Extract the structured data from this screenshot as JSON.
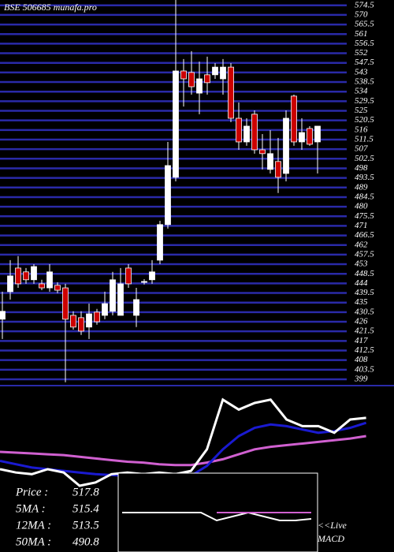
{
  "chart_data": {
    "type": "candlestick",
    "title": "BSE 506685 munafa.pro",
    "open": [
      427.2,
      440.1,
      451.2,
      449.4,
      445.7,
      443.8,
      441.9,
      443.1,
      441.9,
      429,
      427.9,
      423.5,
      430.5,
      429,
      430.9,
      429,
      451.2,
      429,
      444.5,
      445.7,
      454.9,
      471.6,
      493.8,
      543.7,
      543,
      533.3,
      541.9,
      541.9,
      540,
      545.5,
      521.5,
      510.4,
      523.4,
      506.7,
      497.5,
      501.2,
      495.6,
      531.9,
      510.4,
      516.7,
      510.4
    ],
    "high": [
      440.1,
      454.9,
      456.8,
      451.2,
      453,
      445.7,
      453,
      444.5,
      443.8,
      430.9,
      430.9,
      434.5,
      432,
      440.1,
      449.4,
      451.2,
      453,
      441.9,
      446,
      454.9,
      473.4,
      510.4,
      577,
      549.3,
      553,
      548.1,
      550.4,
      547.4,
      549.3,
      547.4,
      528.9,
      521.5,
      525.2,
      514.1,
      515.9,
      512.3,
      525.2,
      532.6,
      521.5,
      517.8,
      517.8
    ],
    "low": [
      417.9,
      436.4,
      441.9,
      443.8,
      443.8,
      440.8,
      440.1,
      439.4,
      397.6,
      422.3,
      419.8,
      417.9,
      424.6,
      427.2,
      429,
      429,
      441.9,
      423.5,
      443.5,
      443.8,
      453,
      469.7,
      491.9,
      527,
      532.6,
      523.4,
      532.6,
      540,
      532.6,
      519.7,
      506.7,
      508.6,
      504.9,
      497.5,
      495.6,
      486.4,
      491.9,
      508.6,
      506.7,
      508.6,
      495.6
    ],
    "close": [
      430.9,
      447.5,
      443.8,
      445.7,
      451.9,
      441.9,
      449.4,
      440.8,
      427.2,
      423.5,
      421.6,
      429.7,
      426,
      434.5,
      445.7,
      443.8,
      443.8,
      436.4,
      444.9,
      449.4,
      471.6,
      499.3,
      543.7,
      540,
      536.3,
      540,
      538.2,
      545.5,
      545.5,
      521.5,
      510.4,
      517.8,
      506.7,
      504.9,
      504.9,
      493.8,
      521.5,
      510.4,
      514.8,
      509.3,
      517.8
    ],
    "ylim": [
      396.4,
      577
    ],
    "yticks": [
      399,
      403.5,
      408,
      412.5,
      417,
      421.5,
      426,
      430.5,
      435,
      439.5,
      444,
      448.5,
      453,
      457.5,
      462,
      466.5,
      471,
      475.5,
      480,
      484.5,
      489,
      493.5,
      498,
      502.5,
      507,
      511.5,
      516,
      520.5,
      525,
      529.5,
      534,
      538.5,
      543,
      547.5,
      552,
      556.5,
      561,
      565.5,
      570,
      574.5
    ],
    "grid": true,
    "grid_color": "#2a2aa8",
    "up_color": "#ffffff",
    "down_color": "#cc0000"
  },
  "indicators": {
    "ylim": [
      0,
      100
    ],
    "series": [
      {
        "color": "#d060d0",
        "values": [
          60.5,
          60,
          59.5,
          59,
          58.5,
          57.5,
          56.5,
          55.5,
          54.5,
          54,
          53,
          52.5,
          52.5,
          54,
          56,
          59,
          62,
          63.5,
          64.5,
          65.5,
          66.5,
          67.5,
          68.5,
          70
        ]
      },
      {
        "color": "#1a1ad0",
        "values": [
          55,
          53,
          51,
          50,
          49,
          48,
          47,
          46.5,
          46,
          45.5,
          45,
          45,
          46,
          52,
          62,
          70,
          75,
          77,
          76,
          74,
          72,
          73,
          75,
          78
        ]
      },
      {
        "color": "#ffffff",
        "values": [
          50,
          48,
          47,
          50,
          48,
          40,
          42,
          47,
          48,
          47,
          48,
          47,
          49,
          62,
          92,
          86,
          90,
          92,
          80,
          76,
          76,
          72,
          80,
          81
        ]
      }
    ]
  },
  "macd": {
    "ylim": [
      -10,
      10
    ],
    "label": [
      "<<Live",
      "MACD"
    ],
    "series": [
      {
        "color": "#ffffff",
        "values": [
          0,
          0,
          0,
          0,
          0,
          0,
          -2,
          -1,
          0,
          -1,
          -2,
          -2,
          -1.6
        ]
      },
      {
        "color": "#d060d0",
        "values": [
          null,
          null,
          null,
          null,
          null,
          null,
          0,
          0,
          0,
          0,
          0,
          0,
          0
        ]
      }
    ]
  },
  "info": [
    {
      "label": "Price  :",
      "value": 517.8
    },
    {
      "label": "5MA  :",
      "value": 515.4
    },
    {
      "label": "12MA :",
      "value": 513.5
    },
    {
      "label": "50MA :",
      "value": 490.8
    }
  ]
}
